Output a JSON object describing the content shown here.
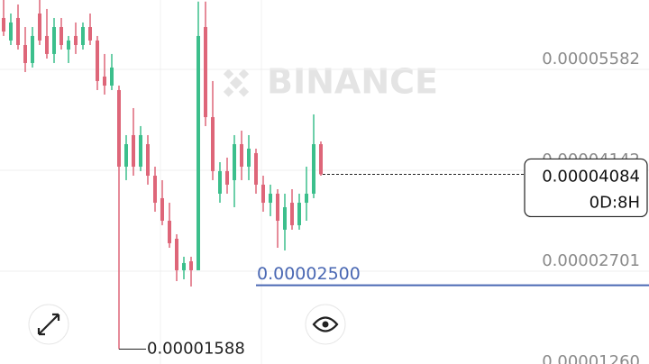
{
  "chart_data": {
    "type": "candlestick",
    "watermark": "BINANCE",
    "up_color": "#3cbf8c",
    "down_color": "#de6679",
    "grid": true,
    "ylim": [
      1.376e-05,
      6.572e-05
    ],
    "yticks": [
      5.582e-05,
      4.142e-05,
      2.701e-05,
      {
        "value": 1.26e-05,
        "label": "0.00001260"
      }
    ],
    "open": [
      6.315e-05,
      5.994e-05,
      6.315e-05,
      5.929e-05,
      5.672e-05,
      6.379e-05,
      6.058e-05,
      5.801e-05,
      6.186e-05,
      5.865e-05,
      6.058e-05,
      5.929e-05,
      6.186e-05,
      5.994e-05,
      5.479e-05,
      5.35e-05,
      5.286e-05,
      4.193e-05,
      4.643e-05,
      4.193e-05,
      4.514e-05,
      4.064e-05,
      3.743e-05,
      3.421e-05,
      3.164e-05,
      2.714e-05,
      2.842e-05,
      2.714e-05,
      6.186e-05,
      4.9e-05,
      3.807e-05,
      4.129e-05,
      4e-05,
      4.514e-05,
      4.193e-05,
      4.386e-05,
      3.936e-05,
      3.678e-05,
      3.807e-05,
      3.293e-05,
      3.678e-05,
      3.357e-05,
      3.678e-05,
      3.807e-05,
      4.514e-05
    ],
    "high": [
      6.572e-05,
      6.379e-05,
      6.508e-05,
      6.186e-05,
      6.186e-05,
      6.572e-05,
      6.444e-05,
      6.315e-05,
      6.315e-05,
      6.058e-05,
      6.251e-05,
      6.251e-05,
      6.379e-05,
      6.058e-05,
      5.801e-05,
      5.801e-05,
      5.35e-05,
      4.643e-05,
      5.029e-05,
      4.772e-05,
      4.643e-05,
      4.193e-05,
      4e-05,
      3.678e-05,
      3.228e-05,
      2.907e-05,
      2.907e-05,
      6.55e-05,
      6.55e-05,
      5.415e-05,
      4.257e-05,
      4.322e-05,
      4.643e-05,
      4.707e-05,
      4.643e-05,
      4.45e-05,
      4.064e-05,
      3.936e-05,
      3.871e-05,
      3.807e-05,
      3.871e-05,
      3.807e-05,
      4.193e-05,
      4.939e-05,
      4.553e-05
    ],
    "low": [
      6.058e-05,
      5.929e-05,
      5.865e-05,
      5.543e-05,
      5.608e-05,
      5.929e-05,
      5.736e-05,
      5.672e-05,
      5.865e-05,
      5.672e-05,
      5.801e-05,
      5.865e-05,
      5.929e-05,
      5.286e-05,
      5.222e-05,
      5.286e-05,
      1.588e-05,
      4e-05,
      4.064e-05,
      4.129e-05,
      3.936e-05,
      3.55e-05,
      3.357e-05,
      3.035e-05,
      2.559e-05,
      2.585e-05,
      2.482e-05,
      2.714e-05,
      4.772e-05,
      4e-05,
      3.678e-05,
      3.807e-05,
      3.614e-05,
      4e-05,
      4e-05,
      3.807e-05,
      3.55e-05,
      3.486e-05,
      3.035e-05,
      2.997e-05,
      3.293e-05,
      3.293e-05,
      3.421e-05,
      3.743e-05,
      4.064e-05
    ],
    "close": [
      6.122e-05,
      6.251e-05,
      5.929e-05,
      5.672e-05,
      6.058e-05,
      5.994e-05,
      5.801e-05,
      6.186e-05,
      5.929e-05,
      5.994e-05,
      5.929e-05,
      6.186e-05,
      5.994e-05,
      5.415e-05,
      5.35e-05,
      5.608e-05,
      4.193e-05,
      4.514e-05,
      4.193e-05,
      4.643e-05,
      4.064e-05,
      3.678e-05,
      3.421e-05,
      3.1e-05,
      2.714e-05,
      2.817e-05,
      2.714e-05,
      6.058e-05,
      4.9e-05,
      4.129e-05,
      4.129e-05,
      3.936e-05,
      4.514e-05,
      4.193e-05,
      4.45e-05,
      3.936e-05,
      3.678e-05,
      3.807e-05,
      3.421e-05,
      3.614e-05,
      3.357e-05,
      3.678e-05,
      3.807e-05,
      4.514e-05,
      4.084e-05
    ],
    "low_marker": {
      "value": 1.588e-05
    },
    "alert_line": {
      "value": 2.5e-05,
      "label": "0.00002500",
      "color": "#4a68b3"
    },
    "current_price": {
      "value": 4.084e-05,
      "countdown": "0D:8H"
    }
  }
}
